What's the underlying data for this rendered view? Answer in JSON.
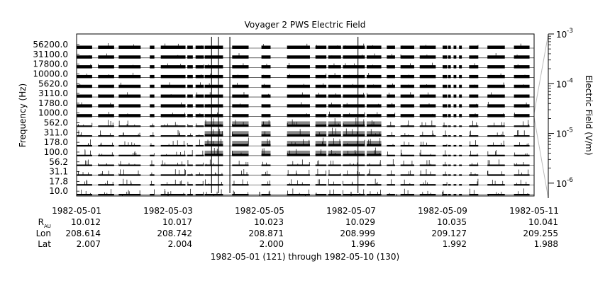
{
  "chart_data": {
    "type": "heatmap",
    "title": "Voyager 2 PWS Electric Field",
    "ylabel": "Frequency (Hz)",
    "zlabel": "Electric Field (V/m)",
    "channels": [
      "56200.0",
      "31100.0",
      "17800.0",
      "10000.0",
      "5620.0",
      "3110.0",
      "1780.0",
      "1000.0",
      "562.0",
      "311.0",
      "178.0",
      "100.0",
      "56.2",
      "31.1",
      "17.8",
      "10.0"
    ],
    "xlim": [
      "1982-05-01",
      "1982-05-11"
    ],
    "x_ticks": [
      "1982-05-01",
      "1982-05-03",
      "1982-05-05",
      "1982-05-07",
      "1982-05-09",
      "1982-05-11"
    ],
    "ephemeris": {
      "labels": {
        "r": "R",
        "r_sub": "AU",
        "lon": "Lon",
        "lat": "Lat"
      },
      "r": [
        "10.012",
        "10.017",
        "10.023",
        "10.029",
        "10.035",
        "10.041"
      ],
      "lon": [
        "208.614",
        "208.742",
        "208.871",
        "208.999",
        "209.127",
        "209.255"
      ],
      "lat": [
        "2.007",
        "2.004",
        "2.000",
        "1.996",
        "1.992",
        "1.988"
      ]
    },
    "xlabel": "1982-05-01 (121) through 1982-05-10 (130)",
    "zscale": "log",
    "zlim": [
      5e-07,
      0.001
    ],
    "z_ticks": [
      {
        "value": 0.001,
        "base": "10",
        "exp": "-3"
      },
      {
        "value": 0.0001,
        "base": "10",
        "exp": "-4"
      },
      {
        "value": 1e-05,
        "base": "10",
        "exp": "-5"
      },
      {
        "value": 1e-06,
        "base": "10",
        "exp": "-6"
      }
    ],
    "data_segments_days": [
      [
        0.0,
        0.34
      ],
      [
        0.47,
        0.82
      ],
      [
        0.92,
        1.4
      ],
      [
        1.6,
        1.7
      ],
      [
        1.84,
        2.38
      ],
      [
        2.42,
        2.54
      ],
      [
        2.6,
        2.78
      ],
      [
        2.8,
        3.2
      ],
      [
        3.4,
        3.76
      ],
      [
        4.04,
        4.24
      ],
      [
        4.6,
        5.1
      ],
      [
        5.22,
        5.46
      ],
      [
        5.5,
        5.78
      ],
      [
        5.82,
        6.0
      ],
      [
        6.0,
        6.3
      ],
      [
        6.34,
        6.66
      ],
      [
        6.78,
        6.96
      ],
      [
        7.08,
        7.38
      ],
      [
        7.5,
        7.85
      ],
      [
        8.0,
        8.1
      ],
      [
        8.12,
        8.18
      ],
      [
        8.24,
        8.3
      ],
      [
        8.36,
        8.42
      ],
      [
        8.58,
        8.78
      ],
      [
        8.98,
        9.36
      ],
      [
        9.56,
        9.9
      ]
    ],
    "enhanced_activity_days": [
      [
        2.8,
        3.2
      ],
      [
        3.4,
        3.76
      ],
      [
        4.04,
        4.24
      ],
      [
        4.6,
        5.1
      ],
      [
        5.22,
        6.3
      ],
      [
        6.34,
        6.66
      ]
    ]
  }
}
